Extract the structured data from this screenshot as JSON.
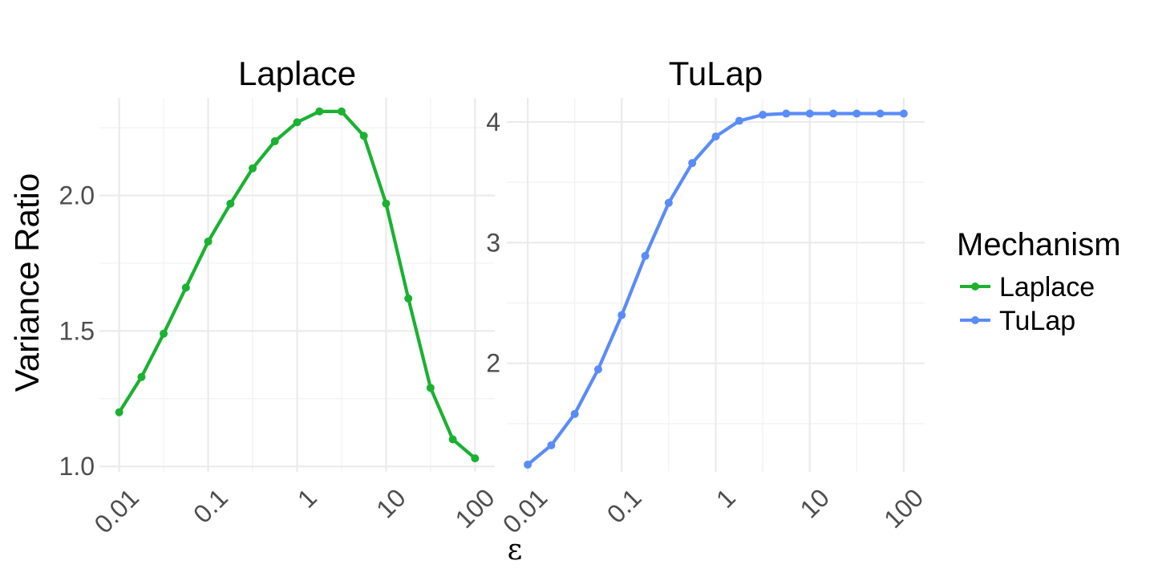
{
  "chart_data": [
    {
      "type": "line",
      "title": "Laplace",
      "ylabel": "Variance Ratio",
      "xscale": "log",
      "xlim": [
        0.01,
        100
      ],
      "ylim": [
        0.98,
        2.36
      ],
      "xticks": [
        0.01,
        0.1,
        1,
        10,
        100
      ],
      "xtick_labels": [
        "0.01",
        "0.1",
        "1",
        "10",
        "100"
      ],
      "yticks": [
        1.0,
        1.5,
        2.0
      ],
      "ytick_labels": [
        "1.0",
        "1.5",
        "2.0"
      ],
      "grid": true,
      "series": [
        {
          "name": "Laplace",
          "color": "#1bb131",
          "x": [
            0.01,
            0.0178,
            0.0316,
            0.0562,
            0.1,
            0.178,
            0.316,
            0.562,
            1,
            1.78,
            3.16,
            5.62,
            10,
            17.8,
            31.6,
            56.2,
            100
          ],
          "y": [
            1.2,
            1.33,
            1.49,
            1.66,
            1.83,
            1.97,
            2.1,
            2.2,
            2.27,
            2.31,
            2.31,
            2.22,
            1.97,
            1.62,
            1.29,
            1.1,
            1.03
          ]
        }
      ]
    },
    {
      "type": "line",
      "title": "TuLap",
      "xscale": "log",
      "xlim": [
        0.01,
        100
      ],
      "ylim": [
        1.1,
        4.2
      ],
      "xticks": [
        0.01,
        0.1,
        1,
        10,
        100
      ],
      "xtick_labels": [
        "0.01",
        "0.1",
        "1",
        "10",
        "100"
      ],
      "yticks": [
        2,
        3,
        4
      ],
      "ytick_labels": [
        "2",
        "3",
        "4"
      ],
      "grid": true,
      "series": [
        {
          "name": "TuLap",
          "color": "#5a8cf7",
          "x": [
            0.01,
            0.0178,
            0.0316,
            0.0562,
            0.1,
            0.178,
            0.316,
            0.562,
            1,
            1.78,
            3.16,
            5.62,
            10,
            17.8,
            31.6,
            56.2,
            100
          ],
          "y": [
            1.16,
            1.32,
            1.58,
            1.95,
            2.4,
            2.89,
            3.33,
            3.66,
            3.88,
            4.01,
            4.06,
            4.07,
            4.07,
            4.07,
            4.07,
            4.07,
            4.07
          ]
        }
      ]
    }
  ],
  "shared_xlabel": "ε",
  "legend": {
    "title": "Mechanism",
    "position": "right",
    "items": [
      {
        "label": "Laplace",
        "color": "#1bb131"
      },
      {
        "label": "TuLap",
        "color": "#5a8cf7"
      }
    ]
  }
}
